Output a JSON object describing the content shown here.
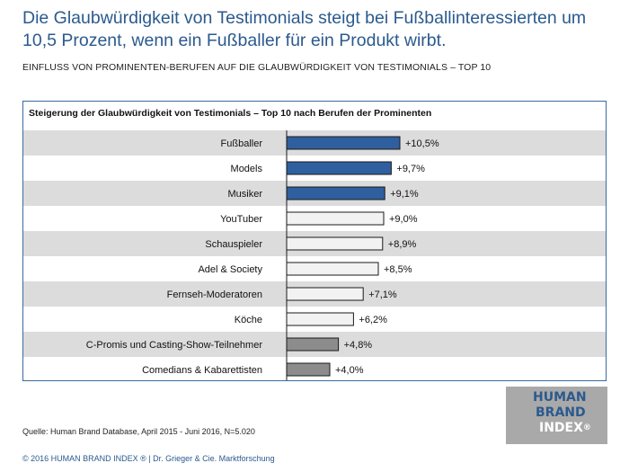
{
  "headline": "Die Glaubwürdigkeit von Testimonials steigt bei Fußballinteressierten um 10,5 Prozent, wenn ein Fußballer für ein Produkt wirbt.",
  "subheadline": "EINFLUSS VON PROMINENTEN-BERUFEN AUF DIE GLAUBWÜRDIGKEIT VON TESTIMONIALS – TOP 10",
  "source": "Quelle: Human Brand Database, April 2015 - Juni 2016, N=5.020",
  "footer": "© 2016 HUMAN BRAND INDEX ® | Dr. Grieger & Cie. Marktforschung",
  "logo": {
    "line1": "HUMAN",
    "line2": "BRAND",
    "line3": "INDEX",
    "reg": "®"
  },
  "colors": {
    "highlight": "#2f5f9e",
    "neutral": "#f2f2f2",
    "low": "#8c8c8c",
    "row_shade": "#dcdcdc",
    "frame": "#3a6aa0"
  },
  "chart_data": {
    "type": "bar",
    "orientation": "horizontal",
    "title": "Steigerung der Glaubwürdigkeit von Testimonials – Top 10 nach Berufen der Prominenten",
    "categories": [
      "Fußballer",
      "Models",
      "Musiker",
      "YouTuber",
      "Schauspieler",
      "Adel & Society",
      "Fernseh-Moderatoren",
      "Köche",
      "C-Promis und Casting-Show-Teilnehmer",
      "Comedians & Kabarettisten"
    ],
    "values": [
      10.5,
      9.7,
      9.1,
      9.0,
      8.9,
      8.5,
      7.1,
      6.2,
      4.8,
      4.0
    ],
    "labels": [
      "+10,5%",
      "+9,7%",
      "+9,1%",
      "+9,0%",
      "+8,9%",
      "+8,5%",
      "+7,1%",
      "+6,2%",
      "+4,8%",
      "+4,0%"
    ],
    "bar_groups": [
      "highlight",
      "highlight",
      "highlight",
      "neutral",
      "neutral",
      "neutral",
      "neutral",
      "neutral",
      "low",
      "low"
    ],
    "xlim": [
      0,
      10.5
    ],
    "grid": false,
    "legend": "none"
  }
}
